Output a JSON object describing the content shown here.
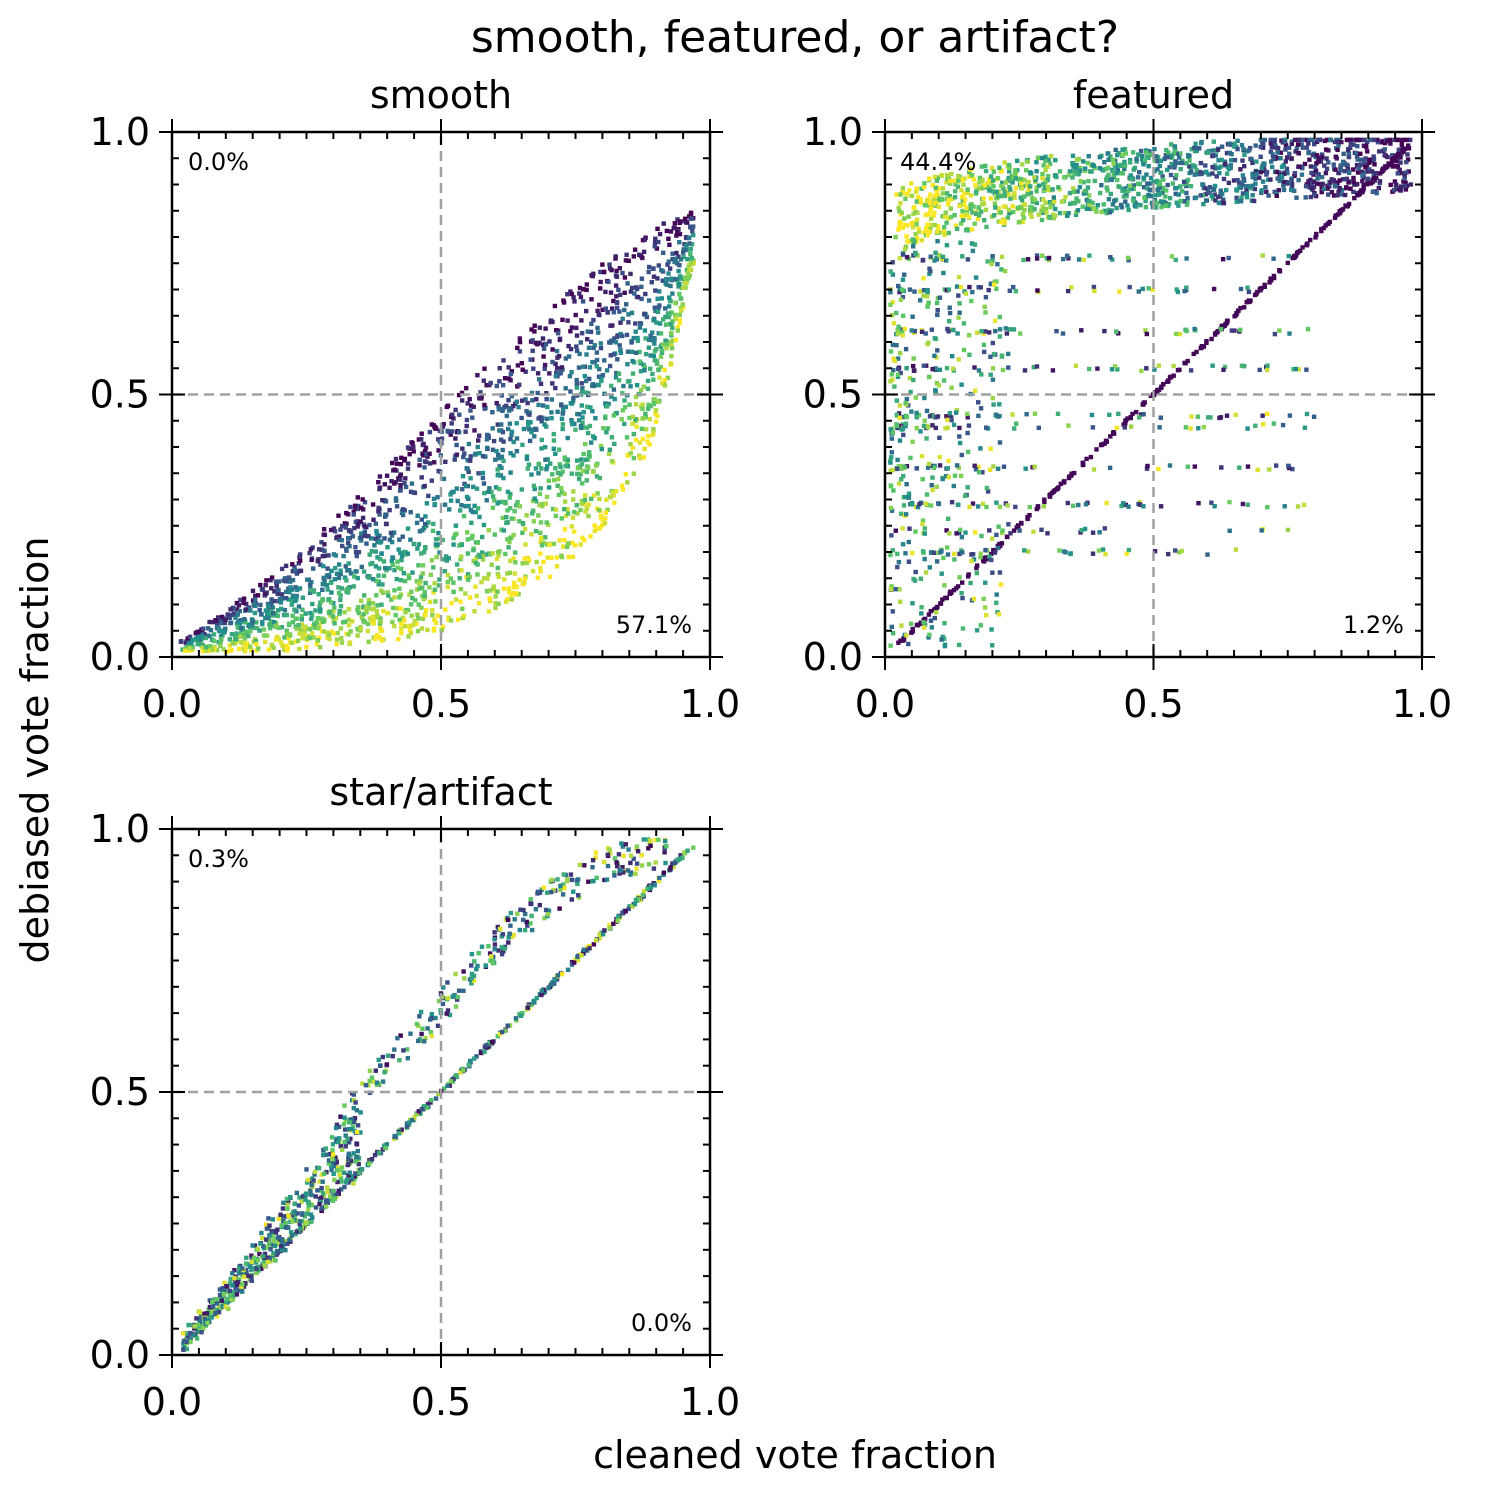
{
  "figure": {
    "suptitle": "smooth, featured, or artifact?",
    "xlabel": "cleaned vote fraction",
    "ylabel": "debiased vote fraction"
  },
  "colors": {
    "axis": "#000000",
    "reference_line": "#a0a0a0",
    "colormap": "viridis",
    "viridis_stops": [
      "#440154",
      "#3b528b",
      "#21918c",
      "#5ec962",
      "#fde725"
    ]
  },
  "chart_data": [
    {
      "type": "scatter",
      "title": "smooth",
      "xlim": [
        0,
        1
      ],
      "ylim": [
        0,
        1
      ],
      "xticks": [
        "0.0",
        "0.5",
        "1.0"
      ],
      "yticks": [
        "0.0",
        "0.5",
        "1.0"
      ],
      "reference_lines": {
        "x": 0.5,
        "y": 0.5,
        "style": "dashed"
      },
      "quadrant_labels": {
        "top_left": "0.0%",
        "bottom_right": "57.1%"
      },
      "envelope": {
        "upper": [
          [
            0.02,
            0.03
          ],
          [
            0.1,
            0.09
          ],
          [
            0.2,
            0.17
          ],
          [
            0.3,
            0.26
          ],
          [
            0.4,
            0.36
          ],
          [
            0.5,
            0.47
          ],
          [
            0.6,
            0.57
          ],
          [
            0.7,
            0.66
          ],
          [
            0.8,
            0.75
          ],
          [
            0.9,
            0.82
          ],
          [
            0.97,
            0.85
          ]
        ],
        "lower": [
          [
            0.02,
            0.01
          ],
          [
            0.1,
            0.01
          ],
          [
            0.2,
            0.01
          ],
          [
            0.3,
            0.02
          ],
          [
            0.4,
            0.03
          ],
          [
            0.5,
            0.05
          ],
          [
            0.6,
            0.09
          ],
          [
            0.7,
            0.15
          ],
          [
            0.8,
            0.24
          ],
          [
            0.9,
            0.42
          ],
          [
            0.97,
            0.75
          ]
        ]
      },
      "point_count_approx": 2200
    },
    {
      "type": "scatter",
      "title": "featured",
      "xlim": [
        0,
        1
      ],
      "ylim": [
        0,
        1
      ],
      "xticks": [
        "0.0",
        "0.5",
        "1.0"
      ],
      "yticks": [
        "0.0",
        "0.5",
        "1.0"
      ],
      "reference_lines": {
        "x": 0.5,
        "y": 0.5,
        "style": "dashed"
      },
      "quadrant_labels": {
        "top_left": "44.4%",
        "bottom_right": "1.2%"
      },
      "features": {
        "top_band": {
          "x_range": [
            0.02,
            0.98
          ],
          "y_range": [
            0.82,
            0.98
          ]
        },
        "diagonal": {
          "x_range": [
            0.02,
            0.98
          ]
        },
        "horizontal_streaks_y": [
          0.76,
          0.7,
          0.62,
          0.55,
          0.46,
          0.44,
          0.36,
          0.29,
          0.24,
          0.2
        ]
      },
      "point_count_approx": 2400
    },
    {
      "type": "scatter",
      "title": "star/artifact",
      "xlim": [
        0,
        1
      ],
      "ylim": [
        0,
        1
      ],
      "xticks": [
        "0.0",
        "0.5",
        "1.0"
      ],
      "yticks": [
        "0.0",
        "0.5",
        "1.0"
      ],
      "reference_lines": {
        "x": 0.5,
        "y": 0.5,
        "style": "dashed"
      },
      "quadrant_labels": {
        "top_left": "0.3%",
        "bottom_right": "0.0%"
      },
      "features": {
        "diagonal": {
          "x_range": [
            0.02,
            0.97
          ]
        },
        "upper_arc": [
          [
            0.2,
            0.28
          ],
          [
            0.3,
            0.42
          ],
          [
            0.4,
            0.55
          ],
          [
            0.5,
            0.66
          ],
          [
            0.6,
            0.78
          ],
          [
            0.7,
            0.87
          ],
          [
            0.8,
            0.93
          ],
          [
            0.9,
            0.96
          ]
        ]
      },
      "point_count_approx": 1100
    }
  ]
}
